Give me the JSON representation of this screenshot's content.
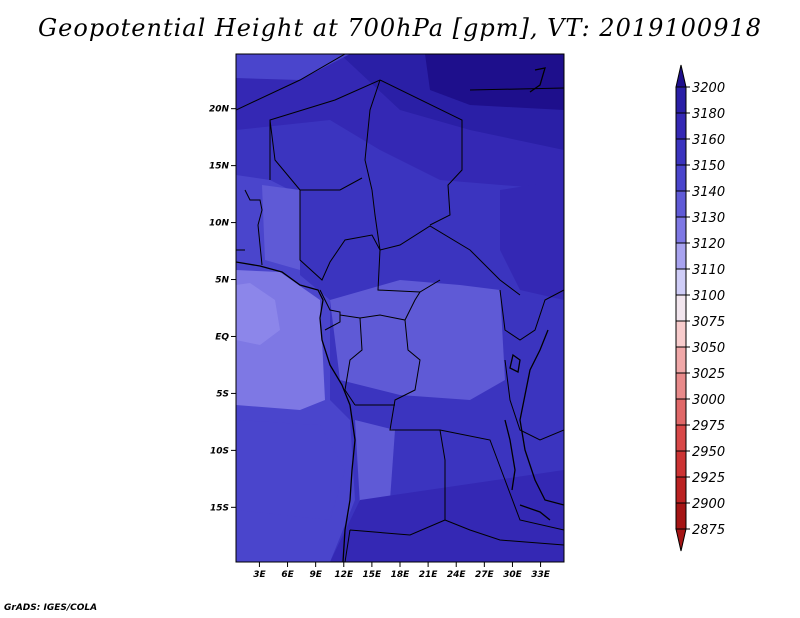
{
  "title": "Geopotential Height at 700hPa [gpm], VT: 2019100918",
  "credit": "GrADS: IGES/COLA",
  "map": {
    "lat_labels": [
      "20N",
      "15N",
      "10N",
      "5N",
      "EQ",
      "5S",
      "10S",
      "15S"
    ],
    "lon_labels": [
      "3E",
      "6E",
      "9E",
      "12E",
      "15E",
      "18E",
      "21E",
      "24E",
      "27E",
      "30E",
      "33E"
    ],
    "lon_range": [
      0.5,
      35.5
    ],
    "lat_range": [
      -19.8,
      24.8
    ]
  },
  "legend": {
    "levels": [
      "3200",
      "3180",
      "3160",
      "3150",
      "3140",
      "3130",
      "3120",
      "3110",
      "3100",
      "3075",
      "3050",
      "3025",
      "3000",
      "2975",
      "2950",
      "2925",
      "2900",
      "2875"
    ],
    "colors": [
      "#1e0f8c",
      "#2a1fa6",
      "#3428b4",
      "#3b34bf",
      "#4a45cc",
      "#5f5ad6",
      "#7e78e4",
      "#a8a3ef",
      "#cfcdf7",
      "#f2e6ee",
      "#f8cccc",
      "#f0a8a8",
      "#e88a8a",
      "#e06868",
      "#d84848",
      "#cc3333",
      "#bb2222",
      "#a51515"
    ]
  }
}
